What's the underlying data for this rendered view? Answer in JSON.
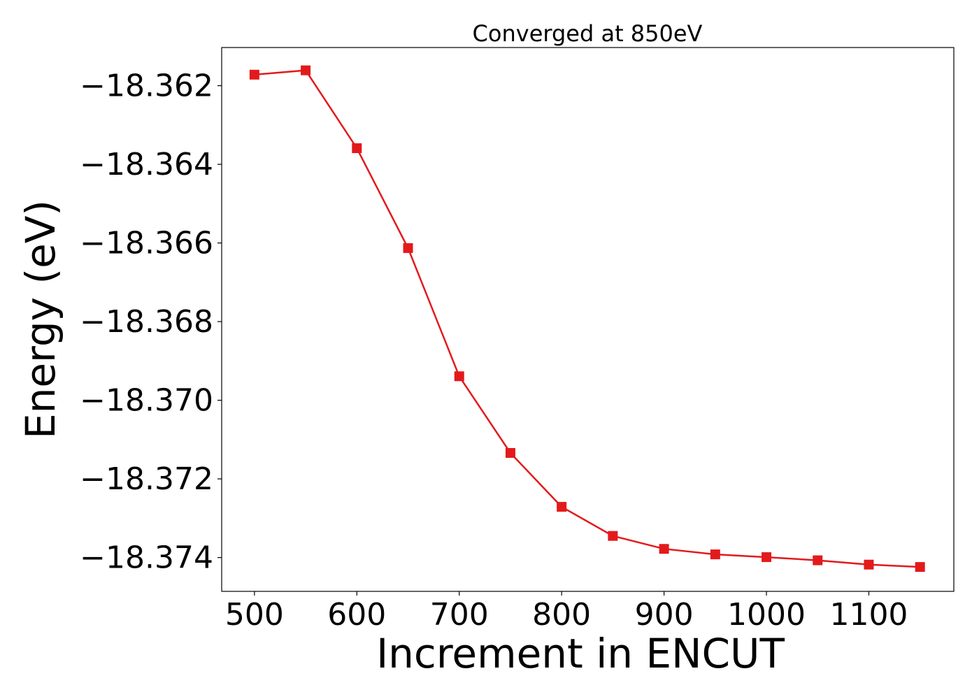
{
  "chart_data": {
    "type": "line",
    "title": "Converged at 850eV",
    "xlabel": "Increment in ENCUT",
    "ylabel": "Energy (eV)",
    "xlim": [
      468,
      1183
    ],
    "ylim": [
      -18.37486,
      -18.36103
    ],
    "x_ticks": [
      500,
      600,
      700,
      800,
      900,
      1000,
      1100
    ],
    "x_tick_labels": [
      "500",
      "600",
      "700",
      "800",
      "900",
      "1000",
      "1100"
    ],
    "y_ticks": [
      -18.362,
      -18.364,
      -18.366,
      -18.368,
      -18.37,
      -18.372,
      -18.374
    ],
    "y_tick_labels": [
      "−18.362",
      "−18.364",
      "−18.366",
      "−18.368",
      "−18.370",
      "−18.372",
      "−18.374"
    ],
    "grid": false,
    "legend": "none",
    "series": [
      {
        "color": "#e31a1c",
        "marker": "square",
        "x": [
          500,
          550,
          600,
          650,
          700,
          750,
          800,
          850,
          900,
          950,
          1000,
          1050,
          1100,
          1150
        ],
        "y": [
          -18.36172,
          -18.36161,
          -18.36359,
          -18.36613,
          -18.36939,
          -18.37134,
          -18.37271,
          -18.37345,
          -18.37378,
          -18.37392,
          -18.37399,
          -18.37407,
          -18.37418,
          -18.37424
        ]
      }
    ]
  }
}
